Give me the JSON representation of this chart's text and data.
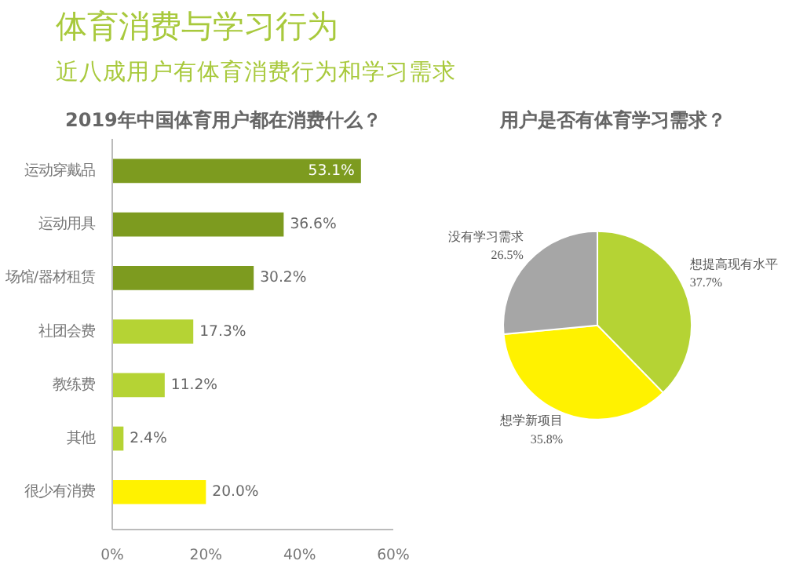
{
  "chart_data": [
    {
      "type": "bar",
      "orientation": "horizontal",
      "title": "体育消费与学习行为",
      "subtitle": "近八成用户有体育消费行为和学习需求",
      "annotations": [
        "2019年中国体育用户都在消费什么？"
      ],
      "categories": [
        "运动穿戴品",
        "运动用具",
        "场馆/器材租赁",
        "社团会费",
        "教练费",
        "其他",
        "很少有消费"
      ],
      "values": [
        53.1,
        36.6,
        30.2,
        17.3,
        11.2,
        2.4,
        20.0
      ],
      "colors": [
        "#7d9b1f",
        "#7d9b1f",
        "#7d9b1f",
        "#b5d334",
        "#b5d334",
        "#b5d334",
        "#fff200"
      ],
      "value_labels": [
        "53.1%",
        "36.6%",
        "30.2%",
        "17.3%",
        "11.2%",
        "2.4%",
        "20.0%"
      ],
      "xlim": [
        0,
        60
      ],
      "xticks": [
        {
          "value": 0,
          "label": "0%"
        },
        {
          "value": 20,
          "label": "20%"
        },
        {
          "value": 40,
          "label": "40%"
        },
        {
          "value": 60,
          "label": "60%"
        }
      ],
      "grid": false
    },
    {
      "type": "pie",
      "title": "用户是否有体育学习需求？",
      "categories": [
        "想提高现有水平",
        "想学新项目",
        "没有学习需求"
      ],
      "values": [
        37.7,
        35.8,
        26.5
      ],
      "colors": [
        "#b5d334",
        "#fff200",
        "#a6a6a6"
      ],
      "value_labels": [
        "37.7%",
        "35.8%",
        "26.5%"
      ]
    }
  ]
}
